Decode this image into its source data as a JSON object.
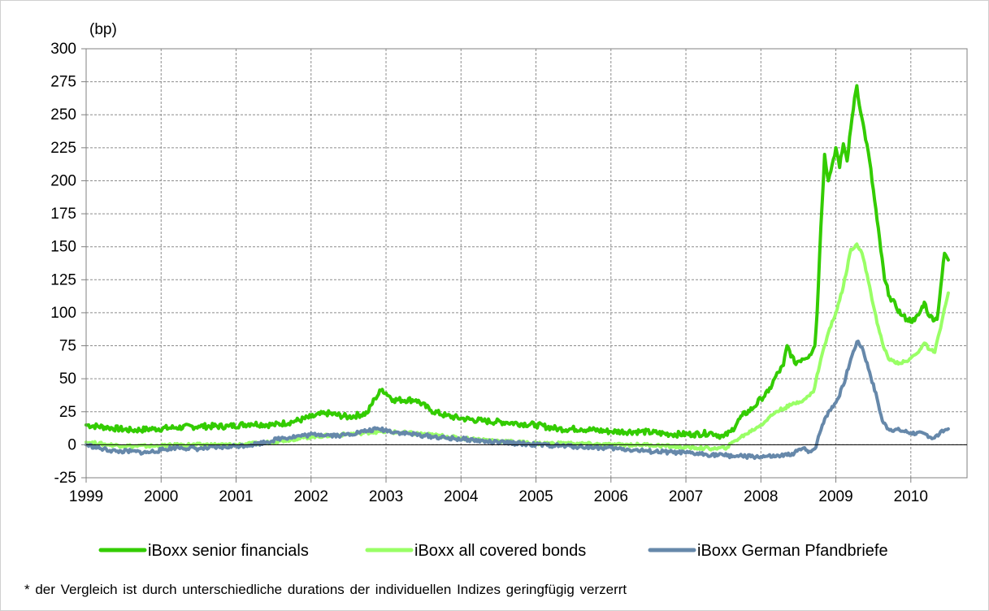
{
  "chart_data": {
    "type": "line",
    "unit_label": "(bp)",
    "ylim": [
      -25,
      300
    ],
    "yticks": [
      -25,
      0,
      25,
      50,
      75,
      100,
      125,
      150,
      175,
      200,
      225,
      250,
      275,
      300
    ],
    "xlim": [
      1999,
      2010.75
    ],
    "xticks": [
      "1999",
      "2000",
      "2001",
      "2002",
      "2003",
      "2004",
      "2005",
      "2006",
      "2007",
      "2008",
      "2009",
      "2010"
    ],
    "grid": true,
    "legend_position": "bottom",
    "colors": {
      "senior": "#33cc00",
      "covered": "#99ff66",
      "pfandbriefe": "#6688aa"
    },
    "series": [
      {
        "name": "iBoxx senior financials",
        "points": [
          [
            1999.0,
            15
          ],
          [
            1999.3,
            13
          ],
          [
            1999.6,
            11
          ],
          [
            1999.9,
            12
          ],
          [
            2000.2,
            13
          ],
          [
            2000.5,
            14
          ],
          [
            2000.9,
            14
          ],
          [
            2001.2,
            16
          ],
          [
            2001.5,
            15
          ],
          [
            2001.8,
            18
          ],
          [
            2002.0,
            21
          ],
          [
            2002.2,
            24
          ],
          [
            2002.5,
            21
          ],
          [
            2002.75,
            24
          ],
          [
            2002.85,
            35
          ],
          [
            2002.95,
            42
          ],
          [
            2003.1,
            34
          ],
          [
            2003.4,
            34
          ],
          [
            2003.6,
            26
          ],
          [
            2003.8,
            22
          ],
          [
            2004.0,
            20
          ],
          [
            2004.3,
            18
          ],
          [
            2004.6,
            17
          ],
          [
            2005.0,
            15
          ],
          [
            2005.3,
            12
          ],
          [
            2005.6,
            12
          ],
          [
            2006.0,
            10
          ],
          [
            2006.4,
            10
          ],
          [
            2006.8,
            8
          ],
          [
            2007.1,
            8
          ],
          [
            2007.35,
            9
          ],
          [
            2007.5,
            6
          ],
          [
            2007.6,
            10
          ],
          [
            2007.75,
            22
          ],
          [
            2007.9,
            28
          ],
          [
            2008.0,
            35
          ],
          [
            2008.1,
            40
          ],
          [
            2008.2,
            52
          ],
          [
            2008.3,
            60
          ],
          [
            2008.35,
            75
          ],
          [
            2008.45,
            62
          ],
          [
            2008.55,
            65
          ],
          [
            2008.65,
            68
          ],
          [
            2008.72,
            75
          ],
          [
            2008.75,
            100
          ],
          [
            2008.8,
            165
          ],
          [
            2008.85,
            220
          ],
          [
            2008.9,
            200
          ],
          [
            2008.95,
            212
          ],
          [
            2009.0,
            225
          ],
          [
            2009.05,
            210
          ],
          [
            2009.1,
            228
          ],
          [
            2009.15,
            215
          ],
          [
            2009.2,
            240
          ],
          [
            2009.25,
            263
          ],
          [
            2009.28,
            272
          ],
          [
            2009.33,
            252
          ],
          [
            2009.38,
            238
          ],
          [
            2009.45,
            215
          ],
          [
            2009.55,
            170
          ],
          [
            2009.65,
            125
          ],
          [
            2009.72,
            112
          ],
          [
            2009.8,
            105
          ],
          [
            2009.88,
            98
          ],
          [
            2009.95,
            95
          ],
          [
            2010.05,
            94
          ],
          [
            2010.12,
            100
          ],
          [
            2010.18,
            108
          ],
          [
            2010.25,
            97
          ],
          [
            2010.35,
            95
          ],
          [
            2010.4,
            120
          ],
          [
            2010.45,
            145
          ],
          [
            2010.5,
            140
          ]
        ]
      },
      {
        "name": "iBoxx all covered bonds",
        "points": [
          [
            1999.0,
            2
          ],
          [
            1999.3,
            0
          ],
          [
            1999.6,
            -1
          ],
          [
            1999.9,
            -1
          ],
          [
            2000.3,
            0
          ],
          [
            2000.7,
            0
          ],
          [
            2001.0,
            0
          ],
          [
            2001.3,
            1
          ],
          [
            2001.6,
            3
          ],
          [
            2002.0,
            6
          ],
          [
            2002.5,
            8
          ],
          [
            2002.9,
            10
          ],
          [
            2003.3,
            9
          ],
          [
            2003.7,
            7
          ],
          [
            2004.0,
            5
          ],
          [
            2004.5,
            3
          ],
          [
            2005.0,
            1
          ],
          [
            2005.5,
            1
          ],
          [
            2006.0,
            0
          ],
          [
            2006.5,
            0
          ],
          [
            2007.0,
            -2
          ],
          [
            2007.4,
            -3
          ],
          [
            2007.55,
            -2
          ],
          [
            2007.65,
            3
          ],
          [
            2007.8,
            8
          ],
          [
            2008.0,
            15
          ],
          [
            2008.2,
            25
          ],
          [
            2008.4,
            30
          ],
          [
            2008.6,
            35
          ],
          [
            2008.7,
            40
          ],
          [
            2008.8,
            65
          ],
          [
            2008.9,
            85
          ],
          [
            2009.0,
            100
          ],
          [
            2009.1,
            120
          ],
          [
            2009.2,
            148
          ],
          [
            2009.28,
            152
          ],
          [
            2009.35,
            145
          ],
          [
            2009.45,
            120
          ],
          [
            2009.55,
            92
          ],
          [
            2009.65,
            72
          ],
          [
            2009.72,
            64
          ],
          [
            2009.85,
            62
          ],
          [
            2009.95,
            63
          ],
          [
            2010.05,
            68
          ],
          [
            2010.12,
            72
          ],
          [
            2010.18,
            77
          ],
          [
            2010.25,
            72
          ],
          [
            2010.32,
            70
          ],
          [
            2010.38,
            85
          ],
          [
            2010.43,
            98
          ],
          [
            2010.5,
            115
          ]
        ]
      },
      {
        "name": "iBoxx German Pfandbriefe",
        "points": [
          [
            1999.0,
            0
          ],
          [
            1999.2,
            -3
          ],
          [
            1999.4,
            -5
          ],
          [
            1999.6,
            -5
          ],
          [
            1999.8,
            -6
          ],
          [
            2000.0,
            -4
          ],
          [
            2000.2,
            -2
          ],
          [
            2000.5,
            -3
          ],
          [
            2000.8,
            -2
          ],
          [
            2001.0,
            -1
          ],
          [
            2001.2,
            0
          ],
          [
            2001.4,
            2
          ],
          [
            2001.6,
            5
          ],
          [
            2001.9,
            7
          ],
          [
            2002.1,
            8
          ],
          [
            2002.4,
            7
          ],
          [
            2002.7,
            10
          ],
          [
            2002.9,
            12
          ],
          [
            2003.2,
            9
          ],
          [
            2003.5,
            7
          ],
          [
            2003.8,
            5
          ],
          [
            2004.1,
            4
          ],
          [
            2004.4,
            2
          ],
          [
            2004.8,
            1
          ],
          [
            2005.0,
            0
          ],
          [
            2005.4,
            -1
          ],
          [
            2005.8,
            -2
          ],
          [
            2006.1,
            -3
          ],
          [
            2006.5,
            -5
          ],
          [
            2006.9,
            -6
          ],
          [
            2007.2,
            -7
          ],
          [
            2007.5,
            -8
          ],
          [
            2007.8,
            -9
          ],
          [
            2008.0,
            -9
          ],
          [
            2008.2,
            -9
          ],
          [
            2008.35,
            -8
          ],
          [
            2008.45,
            -6
          ],
          [
            2008.55,
            -3
          ],
          [
            2008.65,
            -5
          ],
          [
            2008.72,
            -3
          ],
          [
            2008.75,
            2
          ],
          [
            2008.82,
            15
          ],
          [
            2008.9,
            25
          ],
          [
            2009.0,
            32
          ],
          [
            2009.1,
            45
          ],
          [
            2009.2,
            65
          ],
          [
            2009.28,
            78
          ],
          [
            2009.35,
            74
          ],
          [
            2009.45,
            55
          ],
          [
            2009.55,
            35
          ],
          [
            2009.62,
            18
          ],
          [
            2009.7,
            12
          ],
          [
            2009.85,
            11
          ],
          [
            2010.0,
            9
          ],
          [
            2010.2,
            8
          ],
          [
            2010.3,
            5
          ],
          [
            2010.38,
            8
          ],
          [
            2010.45,
            11
          ],
          [
            2010.5,
            12
          ]
        ]
      }
    ],
    "footnote": "* der  Vergleich ist durch  unterschiedliche  durations der individuellen  Indizes geringfügig verzerrt"
  }
}
